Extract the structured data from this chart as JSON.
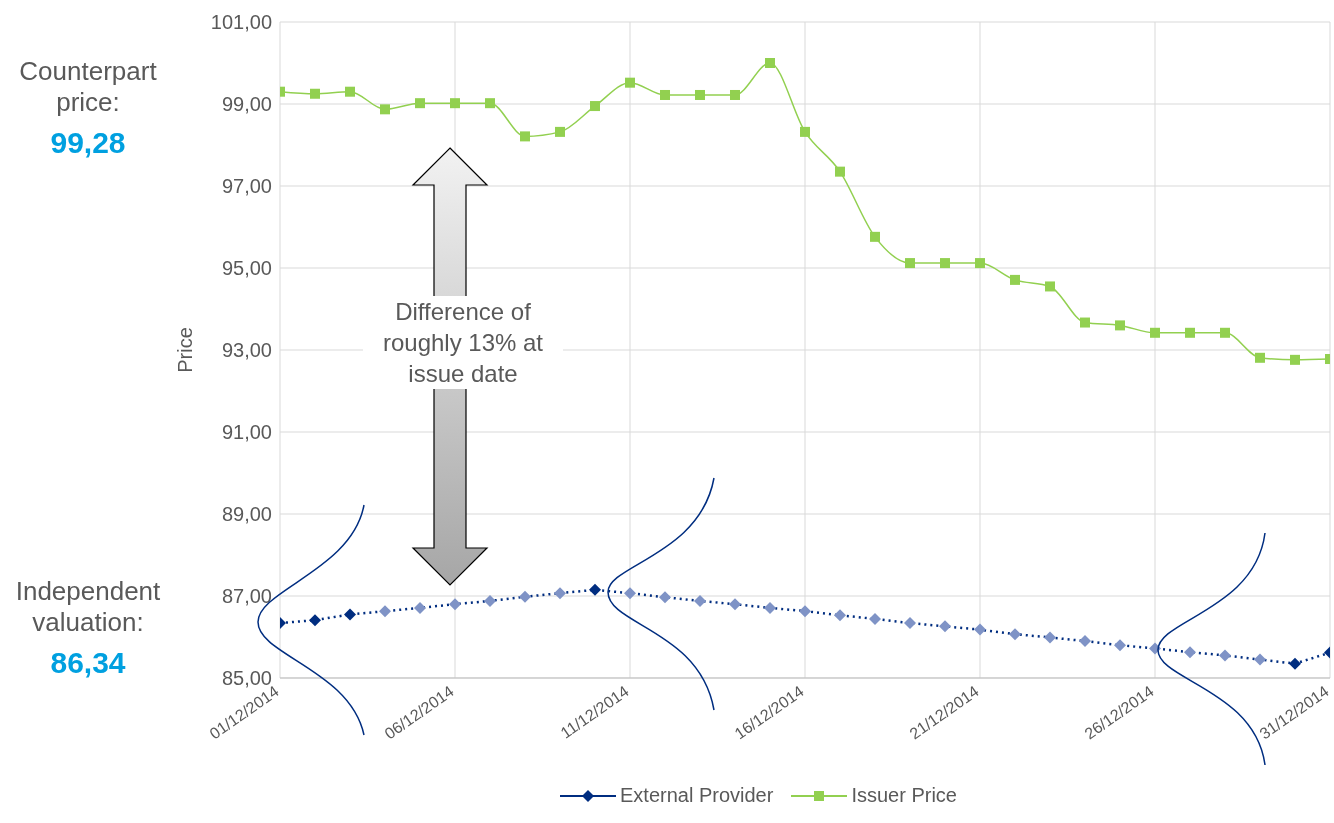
{
  "chart_data": {
    "type": "line",
    "ylabel": "Price",
    "x": [
      "2014-12-01",
      "2014-12-02",
      "2014-12-03",
      "2014-12-04",
      "2014-12-05",
      "2014-12-06",
      "2014-12-07",
      "2014-12-08",
      "2014-12-09",
      "2014-12-10",
      "2014-12-11",
      "2014-12-12",
      "2014-12-13",
      "2014-12-14",
      "2014-12-15",
      "2014-12-16",
      "2014-12-17",
      "2014-12-18",
      "2014-12-19",
      "2014-12-20",
      "2014-12-21",
      "2014-12-22",
      "2014-12-23",
      "2014-12-24",
      "2014-12-25",
      "2014-12-26",
      "2014-12-27",
      "2014-12-28",
      "2014-12-29",
      "2014-12-30",
      "2014-12-31"
    ],
    "series": [
      {
        "name": "External Provider",
        "color": "#002d80",
        "marker": "diamond",
        "line_style": "dotted",
        "colors": [
          "#002d80",
          "#002d80",
          "#002d80",
          "#7f93c6",
          "#7f93c6",
          "#7f93c6",
          "#7f93c6",
          "#7f93c6",
          "#7f93c6",
          "#002d80",
          "#7f93c6",
          "#7f93c6",
          "#7f93c6",
          "#7f93c6",
          "#7f93c6",
          "#7f93c6",
          "#7f93c6",
          "#7f93c6",
          "#7f93c6",
          "#7f93c6",
          "#7f93c6",
          "#7f93c6",
          "#7f93c6",
          "#7f93c6",
          "#7f93c6",
          "#7f93c6",
          "#7f93c6",
          "#7f93c6",
          "#7f93c6",
          "#002d80",
          "#002d80"
        ],
        "values": [
          86.34,
          86.41,
          86.55,
          86.63,
          86.71,
          86.8,
          86.88,
          86.98,
          87.07,
          87.15,
          87.07,
          86.97,
          86.88,
          86.8,
          86.71,
          86.63,
          86.53,
          86.44,
          86.34,
          86.26,
          86.18,
          86.07,
          85.99,
          85.9,
          85.8,
          85.72,
          85.63,
          85.55,
          85.45,
          85.35,
          85.62
        ]
      },
      {
        "name": "Issuer Price",
        "color": "#92d050",
        "marker": "square",
        "line_style": "solid",
        "values": [
          99.3,
          99.25,
          99.3,
          98.87,
          99.02,
          99.02,
          99.02,
          98.21,
          98.32,
          98.95,
          99.52,
          99.22,
          99.22,
          99.22,
          100.0,
          98.32,
          97.35,
          95.76,
          95.12,
          95.12,
          95.12,
          94.71,
          94.55,
          93.67,
          93.6,
          93.42,
          93.42,
          93.42,
          92.81,
          92.76,
          92.78
        ]
      }
    ],
    "xlim": [
      "2014-12-01",
      "2014-12-31"
    ],
    "xticks": [
      {
        "value": "2014-12-01",
        "label": "01/12/2014"
      },
      {
        "value": "2014-12-06",
        "label": "06/12/2014"
      },
      {
        "value": "2014-12-11",
        "label": "11/12/2014"
      },
      {
        "value": "2014-12-16",
        "label": "16/12/2014"
      },
      {
        "value": "2014-12-21",
        "label": "21/12/2014"
      },
      {
        "value": "2014-12-26",
        "label": "26/12/2014"
      },
      {
        "value": "2014-12-31",
        "label": "31/12/2014"
      }
    ],
    "ylim": [
      85,
      101
    ],
    "yticks": [
      {
        "value": 85,
        "label": "85,00"
      },
      {
        "value": 87,
        "label": "87,00"
      },
      {
        "value": 89,
        "label": "89,00"
      },
      {
        "value": 91,
        "label": "91,00"
      },
      {
        "value": 93,
        "label": "93,00"
      },
      {
        "value": 95,
        "label": "95,00"
      },
      {
        "value": 97,
        "label": "97,00"
      },
      {
        "value": 99,
        "label": "99,00"
      },
      {
        "value": 101,
        "label": "101,00"
      }
    ],
    "grid": true,
    "legend": "bottom",
    "annotations": [
      "Counterpart price:",
      "99,28",
      "Independent valuation:",
      "86,34",
      "Difference of roughly 13% at issue date"
    ]
  }
}
